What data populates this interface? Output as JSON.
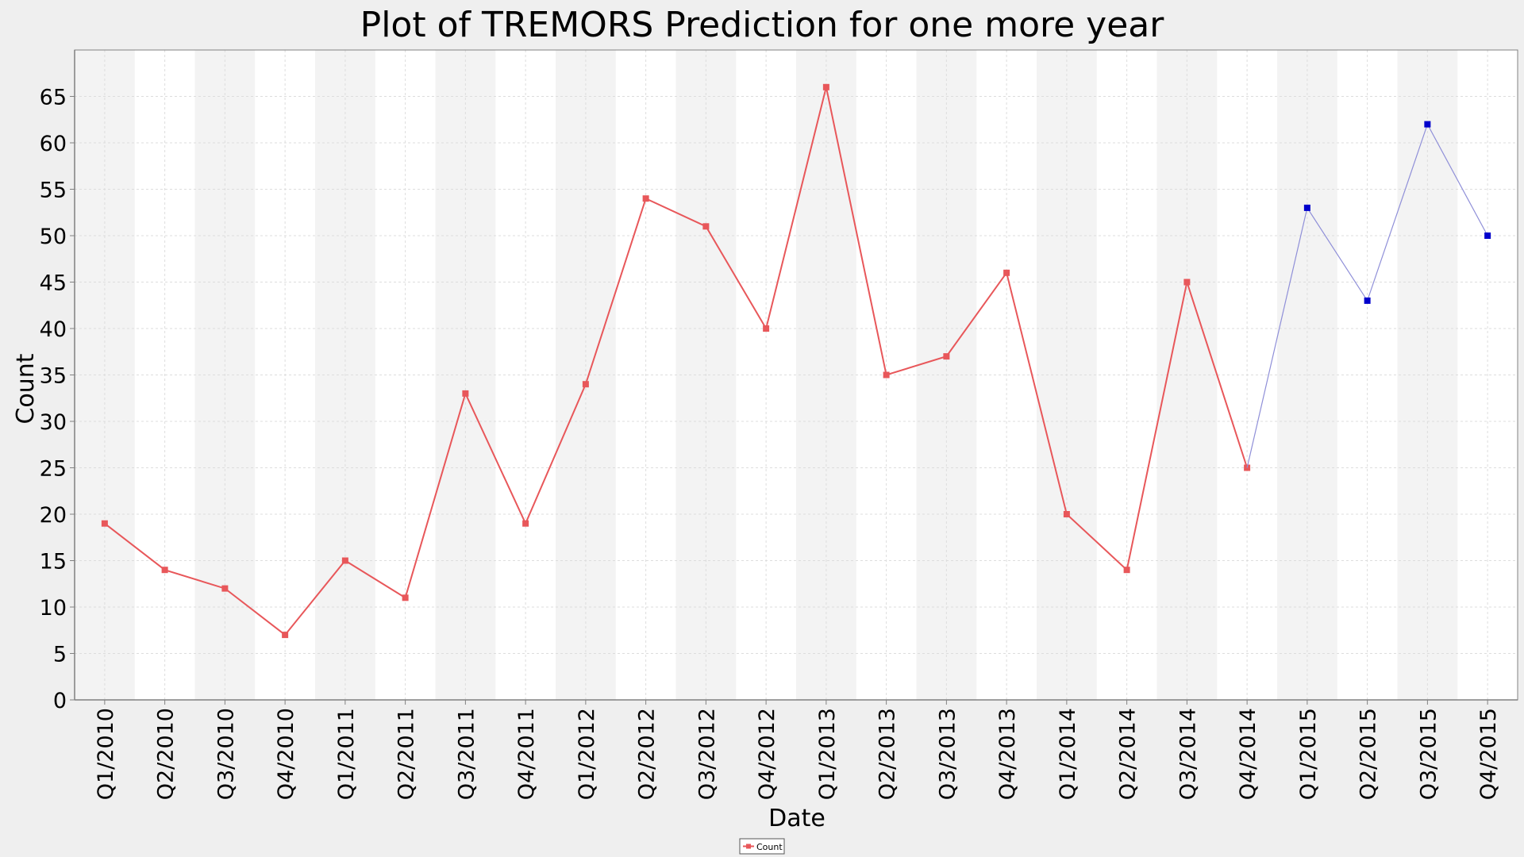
{
  "chart_data": {
    "type": "line",
    "title": "Plot of TREMORS Prediction for one more year",
    "xlabel": "Date",
    "ylabel": "Count",
    "ylim": [
      0,
      70
    ],
    "yticks": [
      0,
      5,
      10,
      15,
      20,
      25,
      30,
      35,
      40,
      45,
      50,
      55,
      60,
      65
    ],
    "grid": true,
    "alternating_column_bands": true,
    "legend_position": "bottom-center",
    "categories": [
      "Q1/2010",
      "Q2/2010",
      "Q3/2010",
      "Q4/2010",
      "Q1/2011",
      "Q2/2011",
      "Q3/2011",
      "Q4/2011",
      "Q1/2012",
      "Q2/2012",
      "Q3/2012",
      "Q4/2012",
      "Q1/2013",
      "Q2/2013",
      "Q3/2013",
      "Q4/2013",
      "Q1/2014",
      "Q2/2014",
      "Q3/2014",
      "Q4/2014",
      "Q1/2015",
      "Q2/2015",
      "Q3/2015",
      "Q4/2015"
    ],
    "series": [
      {
        "name": "Count",
        "color": "#e8575a",
        "x": [
          "Q1/2010",
          "Q2/2010",
          "Q3/2010",
          "Q4/2010",
          "Q1/2011",
          "Q2/2011",
          "Q3/2011",
          "Q4/2011",
          "Q1/2012",
          "Q2/2012",
          "Q3/2012",
          "Q4/2012",
          "Q1/2013",
          "Q2/2013",
          "Q3/2013",
          "Q4/2013",
          "Q1/2014",
          "Q2/2014",
          "Q3/2014",
          "Q4/2014"
        ],
        "values": [
          19,
          14,
          12,
          7,
          15,
          11,
          33,
          19,
          34,
          54,
          51,
          40,
          66,
          35,
          37,
          46,
          20,
          14,
          45,
          25
        ]
      },
      {
        "color": "#0000cc",
        "line_color": "#8f8fd8",
        "x": [
          "Q4/2014",
          "Q1/2015",
          "Q2/2015",
          "Q3/2015",
          "Q4/2015"
        ],
        "values": [
          25,
          53,
          43,
          62,
          50
        ]
      }
    ],
    "colors": {
      "background": "#efefef",
      "plot_background": "#ffffff",
      "band": "#f3f3f3",
      "grid": "#dddddd",
      "axis": "#808080",
      "text": "#000000"
    }
  }
}
